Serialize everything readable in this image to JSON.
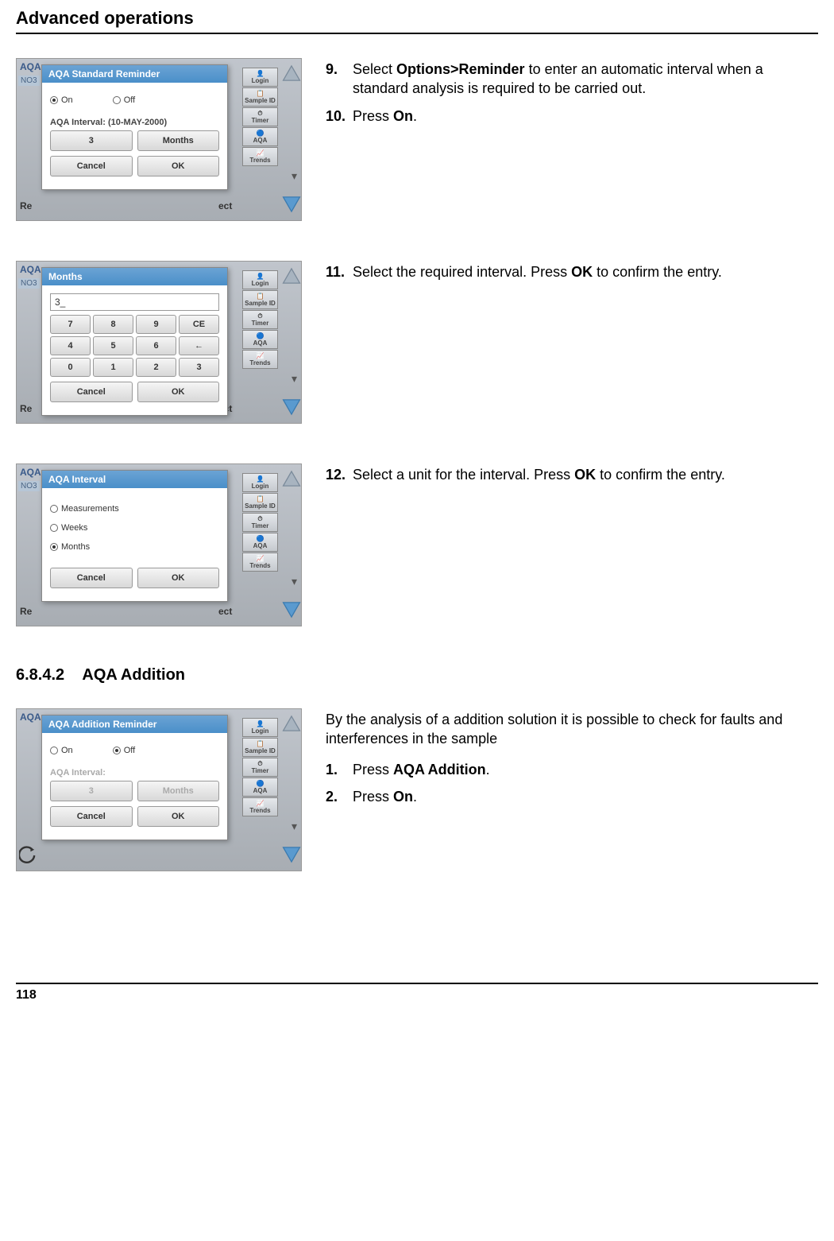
{
  "header": {
    "title": "Advanced operations"
  },
  "footer": {
    "page_number": "118"
  },
  "subsection": {
    "number": "6.8.4.2",
    "title": "AQA Addition"
  },
  "sidebar_labels": [
    "Login",
    "Sample ID",
    "Timer",
    "AQA",
    "Trends"
  ],
  "steps": [
    {
      "num": "9.",
      "text_parts": [
        {
          "t": "Select ",
          "b": false
        },
        {
          "t": "Options>Reminder",
          "b": true
        },
        {
          "t": " to enter an automatic interval when a standard analysis is required to be carried out.",
          "b": false
        }
      ],
      "screenshot": {
        "bg_label": "AQA",
        "modal_title": "AQA Standard Reminder",
        "radio_on": "On",
        "radio_off": "Off",
        "selected": "on",
        "interval_label": "AQA Interval: (10-MAY-2000)",
        "value_btn": "3",
        "unit_btn": "Months",
        "cancel": "Cancel",
        "ok": "OK",
        "re": "Re",
        "ect": "ect"
      }
    },
    {
      "num": "10.",
      "text_parts": [
        {
          "t": "Press ",
          "b": false
        },
        {
          "t": "On",
          "b": true
        },
        {
          "t": ".",
          "b": false
        }
      ]
    },
    {
      "num": "11.",
      "text_parts": [
        {
          "t": "Select the required interval. Press ",
          "b": false
        },
        {
          "t": "OK",
          "b": true
        },
        {
          "t": " to confirm the entry.",
          "b": false
        }
      ],
      "screenshot": {
        "bg_label": "AQA",
        "modal_title": "Months",
        "input_value": "3_",
        "keypad": [
          "7",
          "8",
          "9",
          "CE",
          "4",
          "5",
          "6",
          "←",
          "0",
          "1",
          "2",
          "3"
        ],
        "cancel": "Cancel",
        "ok": "OK",
        "re": "Re",
        "ect": "ect"
      }
    },
    {
      "num": "12.",
      "text_parts": [
        {
          "t": "Select a unit for the interval. Press ",
          "b": false
        },
        {
          "t": "OK",
          "b": true
        },
        {
          "t": " to confirm the entry.",
          "b": false
        }
      ],
      "screenshot": {
        "bg_label": "AQA",
        "modal_title": "AQA Interval",
        "options": [
          "Measurements",
          "Weeks",
          "Months"
        ],
        "selected_index": 2,
        "cancel": "Cancel",
        "ok": "OK",
        "re": "Re",
        "ect": "ect"
      }
    }
  ],
  "addition_block": {
    "intro": "By the analysis of a addition solution it is possible to check for faults and interferences in the sample",
    "steps": [
      {
        "num": "1.",
        "text_parts": [
          {
            "t": "Press ",
            "b": false
          },
          {
            "t": "AQA Addition",
            "b": true
          },
          {
            "t": ".",
            "b": false
          }
        ]
      },
      {
        "num": "2.",
        "text_parts": [
          {
            "t": "Press ",
            "b": false
          },
          {
            "t": "On",
            "b": true
          },
          {
            "t": ".",
            "b": false
          }
        ]
      }
    ],
    "screenshot": {
      "bg_label": "AQA",
      "modal_title": "AQA Addition Reminder",
      "radio_on": "On",
      "radio_off": "Off",
      "selected": "off",
      "interval_label": "AQA Interval:",
      "value_btn": "3",
      "unit_btn": "Months",
      "cancel": "Cancel",
      "ok": "OK",
      "disabled_interval": true
    }
  }
}
